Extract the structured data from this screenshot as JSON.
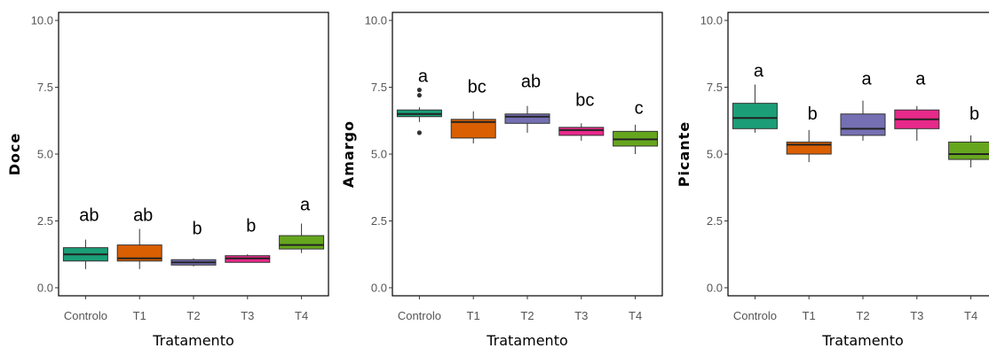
{
  "chart_data": [
    {
      "type": "box",
      "xlabel": "Tratamento",
      "ylabel": "Doce",
      "categories": [
        "Controlo",
        "T1",
        "T2",
        "T3",
        "T4"
      ],
      "ylim": [
        -0.3,
        10.3
      ],
      "yticks": [
        "0.0",
        "2.5",
        "5.0",
        "7.5",
        "10.0"
      ],
      "grid": false,
      "boxes": [
        {
          "category": "Controlo",
          "whisker_low": 0.7,
          "q1": 1.0,
          "median": 1.25,
          "q3": 1.5,
          "whisker_high": 1.8,
          "outliers": [],
          "letter": "ab",
          "letter_y": 2.5,
          "color": "#1B9E77"
        },
        {
          "category": "T1",
          "whisker_low": 0.7,
          "q1": 1.0,
          "median": 1.1,
          "q3": 1.6,
          "whisker_high": 2.2,
          "outliers": [],
          "letter": "ab",
          "letter_y": 2.5,
          "color": "#D95F02"
        },
        {
          "category": "T2",
          "whisker_low": 0.8,
          "q1": 0.85,
          "median": 0.95,
          "q3": 1.05,
          "whisker_high": 1.1,
          "outliers": [],
          "letter": "b",
          "letter_y": 2.0,
          "color": "#7570B3"
        },
        {
          "category": "T3",
          "whisker_low": 0.95,
          "q1": 0.95,
          "median": 1.1,
          "q3": 1.2,
          "whisker_high": 1.25,
          "outliers": [],
          "letter": "b",
          "letter_y": 2.1,
          "color": "#E7298A"
        },
        {
          "category": "T4",
          "whisker_low": 1.3,
          "q1": 1.45,
          "median": 1.6,
          "q3": 1.95,
          "whisker_high": 2.4,
          "outliers": [],
          "letter": "a",
          "letter_y": 2.9,
          "color": "#66A61E"
        }
      ]
    },
    {
      "type": "box",
      "xlabel": "Tratamento",
      "ylabel": "Amargo",
      "categories": [
        "Controlo",
        "T1",
        "T2",
        "T3",
        "T4"
      ],
      "ylim": [
        -0.3,
        10.3
      ],
      "yticks": [
        "0.0",
        "2.5",
        "5.0",
        "7.5",
        "10.0"
      ],
      "grid": false,
      "boxes": [
        {
          "category": "Controlo",
          "whisker_low": 6.2,
          "q1": 6.4,
          "median": 6.5,
          "q3": 6.65,
          "whisker_high": 6.75,
          "outliers": [
            7.4,
            7.2,
            5.8
          ],
          "letter": "a",
          "letter_y": 7.7,
          "color": "#1B9E77"
        },
        {
          "category": "T1",
          "whisker_low": 5.4,
          "q1": 5.6,
          "median": 6.2,
          "q3": 6.3,
          "whisker_high": 6.6,
          "outliers": [],
          "letter": "bc",
          "letter_y": 7.3,
          "color": "#D95F02"
        },
        {
          "category": "T2",
          "whisker_low": 5.8,
          "q1": 6.15,
          "median": 6.4,
          "q3": 6.5,
          "whisker_high": 6.8,
          "outliers": [],
          "letter": "ab",
          "letter_y": 7.5,
          "color": "#7570B3"
        },
        {
          "category": "T3",
          "whisker_low": 5.5,
          "q1": 5.7,
          "median": 5.9,
          "q3": 6.0,
          "whisker_high": 6.15,
          "outliers": [],
          "letter": "bc",
          "letter_y": 6.8,
          "color": "#E7298A"
        },
        {
          "category": "T4",
          "whisker_low": 5.0,
          "q1": 5.3,
          "median": 5.55,
          "q3": 5.85,
          "whisker_high": 6.1,
          "outliers": [],
          "letter": "c",
          "letter_y": 6.5,
          "color": "#66A61E"
        }
      ]
    },
    {
      "type": "box",
      "xlabel": "Tratamento",
      "ylabel": "Picante",
      "categories": [
        "Controlo",
        "T1",
        "T2",
        "T3",
        "T4"
      ],
      "ylim": [
        -0.3,
        10.3
      ],
      "yticks": [
        "0.0",
        "2.5",
        "5.0",
        "7.5",
        "10.0"
      ],
      "grid": false,
      "boxes": [
        {
          "category": "Controlo",
          "whisker_low": 5.8,
          "q1": 5.95,
          "median": 6.35,
          "q3": 6.9,
          "whisker_high": 7.6,
          "outliers": [],
          "letter": "a",
          "letter_y": 7.9,
          "color": "#1B9E77"
        },
        {
          "category": "T1",
          "whisker_low": 4.7,
          "q1": 5.0,
          "median": 5.35,
          "q3": 5.45,
          "whisker_high": 5.9,
          "outliers": [],
          "letter": "b",
          "letter_y": 6.3,
          "color": "#D95F02"
        },
        {
          "category": "T2",
          "whisker_low": 5.5,
          "q1": 5.7,
          "median": 5.95,
          "q3": 6.5,
          "whisker_high": 7.0,
          "outliers": [],
          "letter": "a",
          "letter_y": 7.6,
          "color": "#7570B3"
        },
        {
          "category": "T3",
          "whisker_low": 5.5,
          "q1": 5.95,
          "median": 6.3,
          "q3": 6.65,
          "whisker_high": 6.8,
          "outliers": [],
          "letter": "a",
          "letter_y": 7.6,
          "color": "#E7298A"
        },
        {
          "category": "T4",
          "whisker_low": 4.5,
          "q1": 4.8,
          "median": 5.0,
          "q3": 5.45,
          "whisker_high": 5.7,
          "outliers": [],
          "letter": "b",
          "letter_y": 6.3,
          "color": "#66A61E"
        }
      ]
    }
  ]
}
